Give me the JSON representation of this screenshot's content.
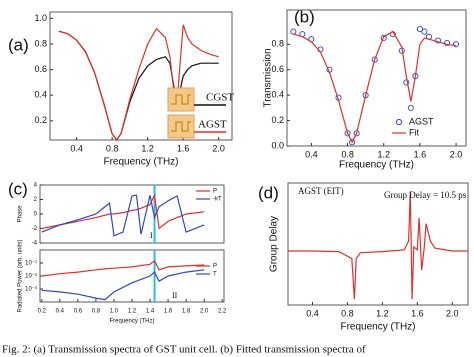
{
  "chart_data": [
    {
      "type": "line",
      "panel": "(a)",
      "xlabel": "Frequency (THz)",
      "xlim": [
        0.1,
        2.15
      ],
      "ylim": [
        0.05,
        1.05
      ],
      "xticks": [
        0.4,
        0.8,
        1.2,
        1.6,
        {
          "value": 2,
          "label": "2.0"
        }
      ],
      "yticks": [
        0.2,
        0.4,
        0.6,
        0.8,
        {
          "value": 1,
          "label": "1.0"
        }
      ],
      "legend": "inset",
      "x": [
        0.2,
        0.3,
        0.4,
        0.5,
        0.6,
        0.7,
        0.8,
        0.85,
        0.9,
        1.0,
        1.1,
        1.2,
        1.3,
        1.4,
        1.45,
        1.5,
        1.53,
        1.56,
        1.6,
        1.65,
        1.7,
        1.8,
        1.9,
        2.0
      ],
      "series": [
        {
          "name": "CGST",
          "color": "#111111",
          "values": [
            0.9,
            0.88,
            0.83,
            0.74,
            0.58,
            0.35,
            0.1,
            0.05,
            0.1,
            0.35,
            0.53,
            0.63,
            0.68,
            0.7,
            0.65,
            0.45,
            0.3,
            0.42,
            0.55,
            0.6,
            0.63,
            0.65,
            0.65,
            0.65
          ]
        },
        {
          "name": "AGST",
          "color": "#e0302a",
          "values": [
            0.9,
            0.88,
            0.83,
            0.74,
            0.58,
            0.35,
            0.1,
            0.05,
            0.1,
            0.37,
            0.6,
            0.8,
            0.92,
            0.85,
            0.7,
            0.4,
            0.33,
            0.6,
            0.95,
            0.85,
            0.8,
            0.75,
            0.72,
            0.7
          ]
        }
      ]
    },
    {
      "type": "line",
      "panel": "(b)",
      "xlabel": "Frequency (THz)",
      "ylabel": "Transmission",
      "xlim": [
        0.13,
        2.11
      ],
      "ylim": [
        0,
        1.07
      ],
      "xticks": [
        0.4,
        0.8,
        1.2,
        1.6,
        {
          "value": 2,
          "label": "2.0"
        }
      ],
      "yticks": [
        {
          "value": 0,
          "label": "0.0"
        },
        0.2,
        0.4,
        0.6,
        0.8
      ],
      "legend": "lower right",
      "x": [
        0.2,
        0.3,
        0.4,
        0.5,
        0.6,
        0.7,
        0.8,
        0.85,
        0.9,
        1.0,
        1.1,
        1.2,
        1.3,
        1.4,
        1.45,
        1.5,
        1.55,
        1.6,
        1.65,
        1.7,
        1.8,
        1.9,
        2.0
      ],
      "series": [
        {
          "name": "AGST",
          "color": "#3344cc",
          "marker": "circle",
          "values": [
            0.9,
            0.88,
            0.84,
            0.76,
            0.6,
            0.38,
            0.1,
            0.03,
            0.1,
            0.4,
            0.68,
            0.85,
            0.88,
            0.75,
            0.5,
            0.3,
            0.55,
            0.92,
            0.9,
            0.86,
            0.83,
            0.81,
            0.8
          ]
        },
        {
          "name": "Fit",
          "color": "#e0302a",
          "values": [
            0.88,
            0.86,
            0.82,
            0.74,
            0.58,
            0.36,
            0.1,
            0.03,
            0.1,
            0.4,
            0.68,
            0.86,
            0.9,
            0.78,
            0.55,
            0.35,
            0.55,
            0.8,
            0.85,
            0.84,
            0.82,
            0.8,
            0.79
          ]
        }
      ]
    },
    {
      "type": "line",
      "panel": "(c)",
      "ylabel": "Phase",
      "xlim": [
        0.18,
        2.22
      ],
      "ylim": [
        -4,
        4
      ],
      "yticks": [
        -4,
        -2,
        0,
        2,
        4
      ],
      "legend": "upper right",
      "vline": 1.45,
      "annotations": [
        "I"
      ],
      "x": [
        0.2,
        0.4,
        0.6,
        0.8,
        0.95,
        1.0,
        1.1,
        1.2,
        1.25,
        1.3,
        1.4,
        1.45,
        1.5,
        1.6,
        1.7,
        1.8,
        2.0
      ],
      "series": [
        {
          "name": "P",
          "color": "#e0302a",
          "values": [
            -2,
            -1.5,
            -1,
            -0.5,
            0,
            0,
            0.2,
            0.5,
            0.6,
            0.8,
            1.3,
            2.6,
            -2,
            -1,
            -0.5,
            0,
            0.3
          ]
        },
        {
          "name": "-kT",
          "color": "#3344cc",
          "values": [
            -2.5,
            -1.5,
            -0.8,
            0,
            1.5,
            -3,
            -2.5,
            2.5,
            2.6,
            -2.8,
            2.6,
            -0.5,
            1,
            1.8,
            2.5,
            -2.5,
            -1.5
          ]
        }
      ]
    },
    {
      "type": "line",
      "xlabel": "Frequency (THz)",
      "ylabel": "Radiated Power (arb. units)",
      "xlim": [
        0.18,
        2.22
      ],
      "ylim": [
        0.0001,
        1
      ],
      "log": true,
      "xticks": [
        0.2,
        0.4,
        0.6,
        0.8,
        {
          "value": 1,
          "label": "1.0"
        },
        1.2,
        1.4,
        1.6,
        1.8,
        {
          "value": 2,
          "label": "2.0"
        },
        2.2
      ],
      "yticks": [
        {
          "value": 0.001,
          "label": "10⁻³"
        },
        {
          "value": 0.01,
          "label": "10⁻²"
        },
        {
          "value": 0.1,
          "label": "10⁻¹"
        }
      ],
      "legend": "upper right",
      "vline": 1.45,
      "annotations": [
        "II"
      ],
      "x": [
        0.2,
        0.4,
        0.6,
        0.8,
        0.9,
        1.0,
        1.2,
        1.4,
        1.45,
        1.5,
        1.6,
        1.8,
        2.0
      ],
      "series": [
        {
          "name": "P",
          "color": "#e0302a",
          "values": [
            0.01,
            0.015,
            0.02,
            0.03,
            0.035,
            0.04,
            0.05,
            0.08,
            0.15,
            0.03,
            0.05,
            0.06,
            0.07
          ]
        },
        {
          "name": "T",
          "color": "#3344cc",
          "values": [
            0.0008,
            0.0006,
            0.0004,
            0.0002,
            0.00015,
            0.0006,
            0.003,
            0.01,
            0.02,
            0.004,
            0.01,
            0.02,
            0.03
          ]
        }
      ]
    },
    {
      "type": "line",
      "panel": "(d)",
      "xlabel": "Frequency (THz)",
      "ylabel": "Group Delay",
      "xlim": [
        0.12,
        2.18
      ],
      "ylim": [
        -9,
        12
      ],
      "xticks": [
        0.4,
        0.8,
        1.2,
        1.6,
        {
          "value": 2,
          "label": "2.0"
        }
      ],
      "annotations": [
        "AGST (EIT)",
        "Group Delay = 10.5 ps"
      ],
      "x": [
        0.12,
        0.4,
        0.7,
        0.85,
        0.88,
        0.9,
        0.95,
        1.2,
        1.45,
        1.5,
        1.52,
        1.54,
        1.56,
        1.6,
        1.62,
        1.65,
        1.68,
        1.7,
        1.75,
        1.8,
        2.0,
        2.18
      ],
      "series": [
        {
          "name": "AGST (EIT)",
          "color": "#e0302a",
          "values": [
            0.3,
            0.3,
            0.2,
            -1,
            -8,
            -1,
            0,
            0.2,
            0.5,
            2,
            10.5,
            -8,
            1,
            0.5,
            6,
            -3,
            1,
            5,
            2,
            0.8,
            0.3,
            0.3
          ]
        }
      ]
    }
  ],
  "caption": "Fig. 2: (a) Transmission spectra of GST unit cell. (b) Fitted transmission spectra of"
}
